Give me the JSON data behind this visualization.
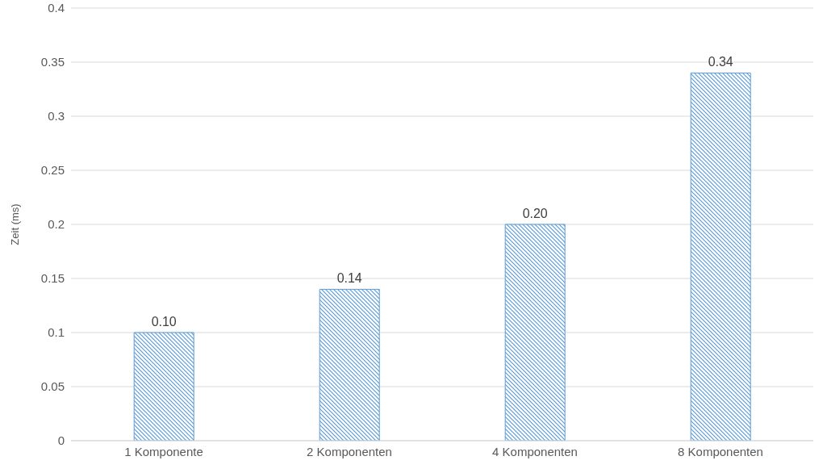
{
  "chart_data": {
    "type": "bar",
    "ylabel": "Zeit (ms)",
    "categories": [
      "1 Komponente",
      "2 Komponenten",
      "4 Komponenten",
      "8 Komponenten"
    ],
    "values": [
      0.1,
      0.14,
      0.2,
      0.34
    ],
    "value_labels": [
      "0.10",
      "0.14",
      "0.20",
      "0.34"
    ],
    "color": "#5b9bd5",
    "ylim": [
      0,
      0.4
    ],
    "yticks": [
      0,
      0.05,
      0.1,
      0.15,
      0.2,
      0.25,
      0.3,
      0.35,
      0.4
    ],
    "grid": "y",
    "legend": false
  }
}
